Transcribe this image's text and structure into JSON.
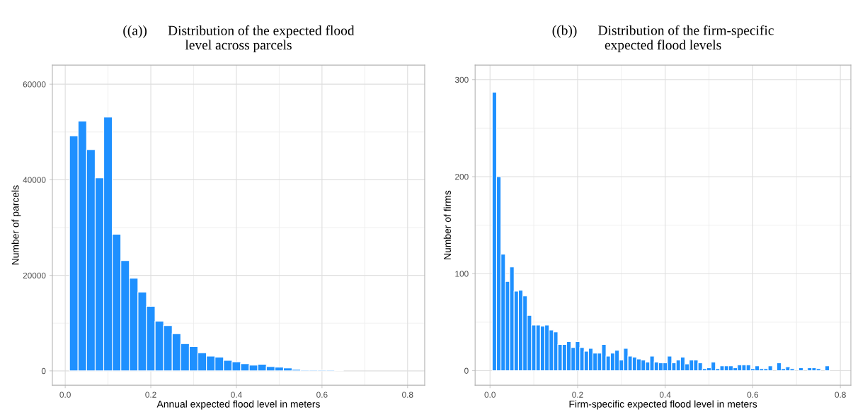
{
  "chart_data": [
    {
      "type": "histogram",
      "title": "((a))      Distribution of the expected flood\nlevel across parcels",
      "xlabel": "Annual expected flood level in meters",
      "ylabel": "Number of parcels",
      "color": "#1e90ff",
      "bins": [
        0.01,
        0.03,
        0.05,
        0.07,
        0.09,
        0.11,
        0.13,
        0.15,
        0.17,
        0.19,
        0.21,
        0.23,
        0.25,
        0.27,
        0.29,
        0.31,
        0.33,
        0.35,
        0.37,
        0.39,
        0.41,
        0.43,
        0.45,
        0.47,
        0.49,
        0.51,
        0.53,
        0.55,
        0.57,
        0.59,
        0.61,
        0.63,
        0.65
      ],
      "values": [
        49200,
        52300,
        46300,
        40400,
        53100,
        28600,
        23100,
        19400,
        16500,
        13500,
        10400,
        9500,
        7800,
        5700,
        5100,
        3800,
        3100,
        2900,
        2200,
        1900,
        1500,
        1200,
        1400,
        900,
        800,
        600,
        300,
        200,
        200,
        200,
        200,
        100
      ],
      "xlim": [
        -0.03,
        0.84
      ],
      "xticks": [
        {
          "value": 0,
          "label": "0.0"
        },
        0.2,
        0.4,
        0.6,
        0.8
      ],
      "ylim": [
        -3000,
        64000
      ],
      "yticks": [
        0,
        20000,
        40000,
        60000
      ],
      "grid": true
    },
    {
      "type": "histogram",
      "title": "((b))      Distribution of the firm-specific\nexpected flood levels",
      "xlabel": "Firm-specific expected flood level in meters",
      "ylabel": "Number of firms",
      "color": "#1e90ff",
      "bins": [
        0.005,
        0.015,
        0.025,
        0.035,
        0.045,
        0.055,
        0.065,
        0.075,
        0.085,
        0.095,
        0.105,
        0.115,
        0.125,
        0.135,
        0.145,
        0.155,
        0.165,
        0.175,
        0.185,
        0.195,
        0.205,
        0.215,
        0.225,
        0.235,
        0.245,
        0.255,
        0.265,
        0.275,
        0.285,
        0.295,
        0.305,
        0.315,
        0.325,
        0.335,
        0.345,
        0.355,
        0.365,
        0.375,
        0.385,
        0.395,
        0.405,
        0.415,
        0.425,
        0.435,
        0.445,
        0.455,
        0.465,
        0.475,
        0.485,
        0.495,
        0.505,
        0.515,
        0.525,
        0.535,
        0.545,
        0.555,
        0.565,
        0.575,
        0.585,
        0.595,
        0.605,
        0.615,
        0.625,
        0.635,
        0.645,
        0.655,
        0.665,
        0.675,
        0.685,
        0.695,
        0.705,
        0.715,
        0.725,
        0.735,
        0.745,
        0.755,
        0.765,
        0.775,
        0.785
      ],
      "values": [
        287,
        200,
        120,
        92,
        107,
        82,
        83,
        77,
        57,
        47,
        47,
        46,
        47,
        42,
        40,
        27,
        27,
        30,
        24,
        30,
        24,
        20,
        23,
        18,
        18,
        27,
        15,
        18,
        21,
        11,
        23,
        15,
        14,
        12,
        11,
        9,
        15,
        9,
        8,
        8,
        15,
        8,
        11,
        14,
        7,
        11,
        11,
        8,
        2,
        3,
        9,
        2,
        5,
        5,
        5,
        3,
        6,
        6,
        6,
        2,
        5,
        2,
        2,
        5,
        0,
        8,
        2,
        4,
        2,
        0,
        3,
        0,
        3,
        3,
        2,
        0,
        5,
        0
      ],
      "xlim": [
        -0.034,
        0.824
      ],
      "xticks": [
        {
          "value": 0,
          "label": "0.0"
        },
        0.2,
        0.4,
        0.6,
        0.8
      ],
      "ylim": [
        -15,
        315
      ],
      "yticks": [
        0,
        100,
        200,
        300
      ],
      "grid": true
    }
  ]
}
